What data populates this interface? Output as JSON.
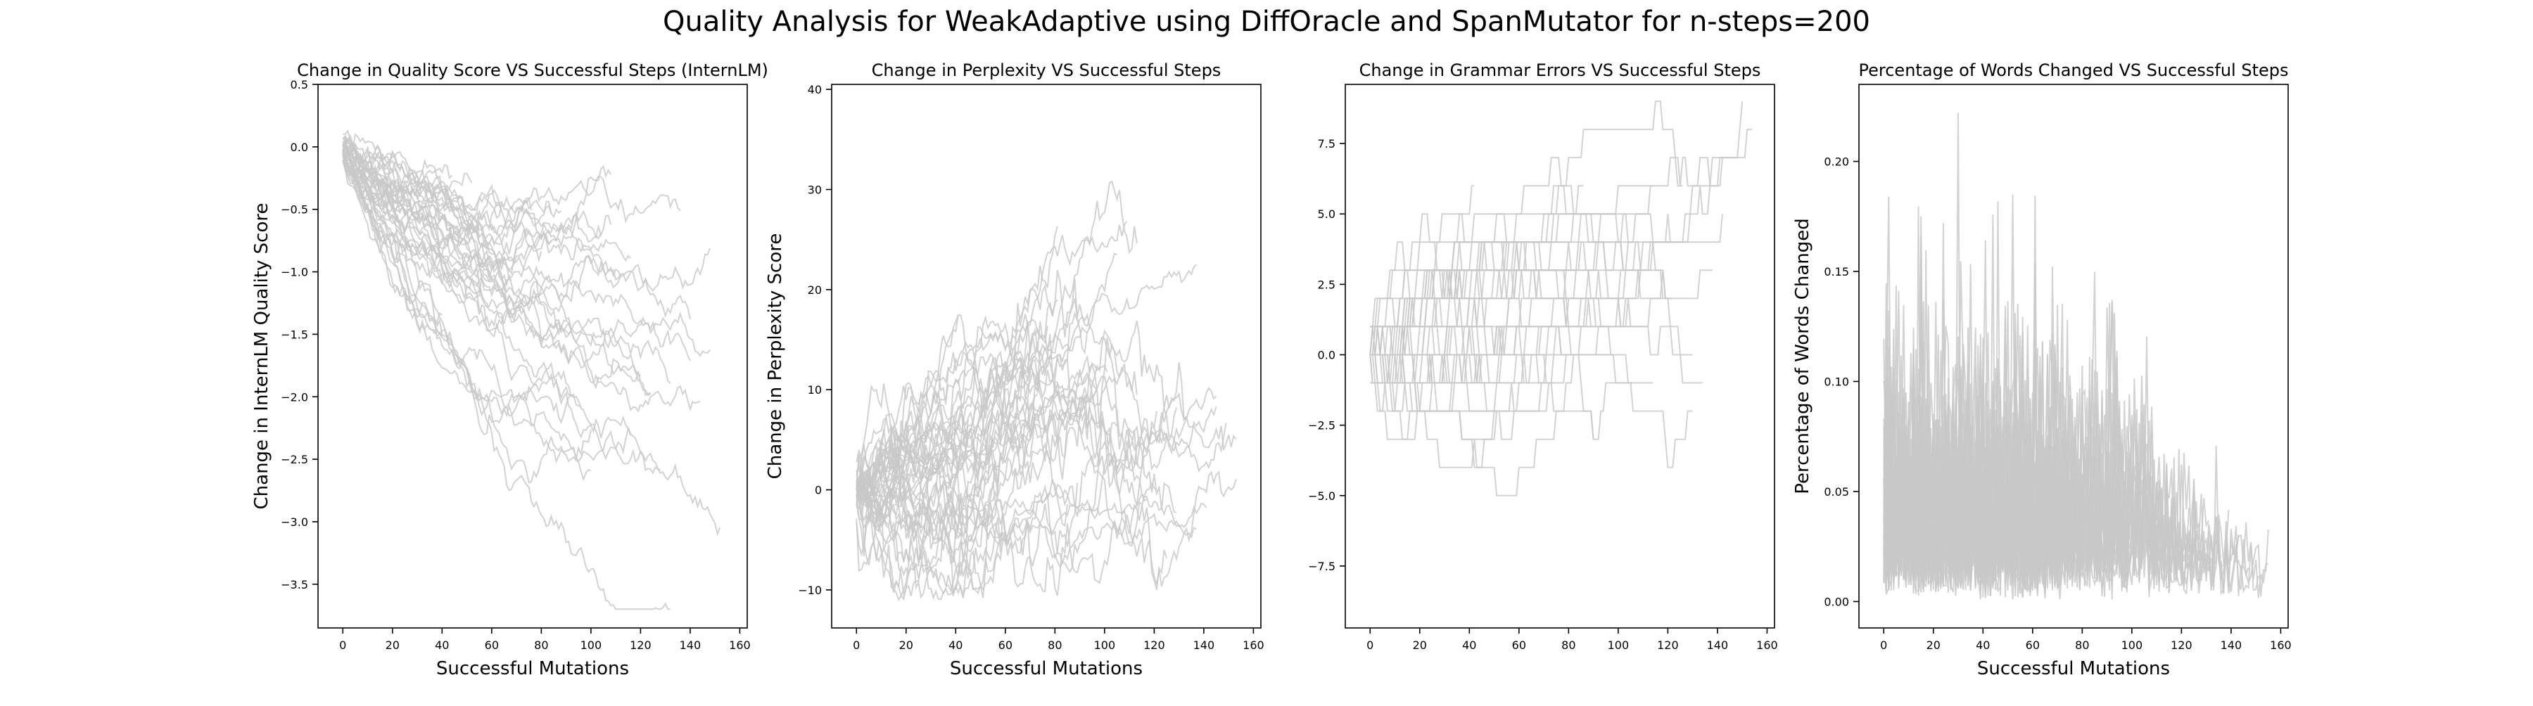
{
  "figure": {
    "title": "Quality Analysis for WeakAdaptive using DiffOracle and SpanMutator for n-steps=200"
  },
  "chart_data": [
    {
      "type": "line",
      "title": "Change in Quality Score VS Successful Steps (InternLM)",
      "xlabel": "Successful Mutations",
      "ylabel": "Change in InternLM Quality Score",
      "xlim": [
        -10,
        163
      ],
      "ylim": [
        -3.85,
        0.5
      ],
      "xticks": [
        0,
        20,
        40,
        60,
        80,
        100,
        120,
        140,
        160
      ],
      "yticks": [
        -3.5,
        -3.0,
        -2.5,
        -2.0,
        -1.5,
        -1.0,
        -0.5,
        0.0,
        0.5
      ],
      "ytick_decimals": 1,
      "line_color": "#c8c8c8",
      "series_count": 40,
      "trend": "quality_decline"
    },
    {
      "type": "line",
      "title": "Change in Perplexity VS Successful Steps",
      "xlabel": "Successful Mutations",
      "ylabel": "Change in Perplexity Score",
      "xlim": [
        -10,
        163
      ],
      "ylim": [
        -13.8,
        40.5
      ],
      "xticks": [
        0,
        20,
        40,
        60,
        80,
        100,
        120,
        140,
        160
      ],
      "yticks": [
        -10,
        0,
        10,
        20,
        30,
        40
      ],
      "ytick_decimals": 0,
      "line_color": "#c8c8c8",
      "series_count": 40,
      "trend": "perplexity_rise"
    },
    {
      "type": "line",
      "title": "Change in Grammar Errors VS Successful Steps",
      "xlabel": "",
      "ylabel": "",
      "xlim": [
        -10,
        163
      ],
      "ylim": [
        -9.7,
        9.6
      ],
      "xticks": [
        0,
        20,
        40,
        60,
        80,
        100,
        120,
        140,
        160
      ],
      "yticks": [
        -7.5,
        -5.0,
        -2.5,
        0.0,
        2.5,
        5.0,
        7.5
      ],
      "ytick_decimals": 1,
      "line_color": "#c8c8c8",
      "series_count": 40,
      "trend": "grammar_steps"
    },
    {
      "type": "line",
      "title": "Percentage of Words Changed VS Successful Steps",
      "xlabel": "Successful Mutations",
      "ylabel": "Percentage of Words Changed",
      "xlim": [
        -10,
        163
      ],
      "ylim": [
        -0.012,
        0.235
      ],
      "xticks": [
        0,
        20,
        40,
        60,
        80,
        100,
        120,
        140,
        160
      ],
      "yticks": [
        0.0,
        0.05,
        0.1,
        0.15,
        0.2
      ],
      "ytick_decimals": 2,
      "line_color": "#c8c8c8",
      "series_count": 40,
      "trend": "words_changed"
    }
  ]
}
